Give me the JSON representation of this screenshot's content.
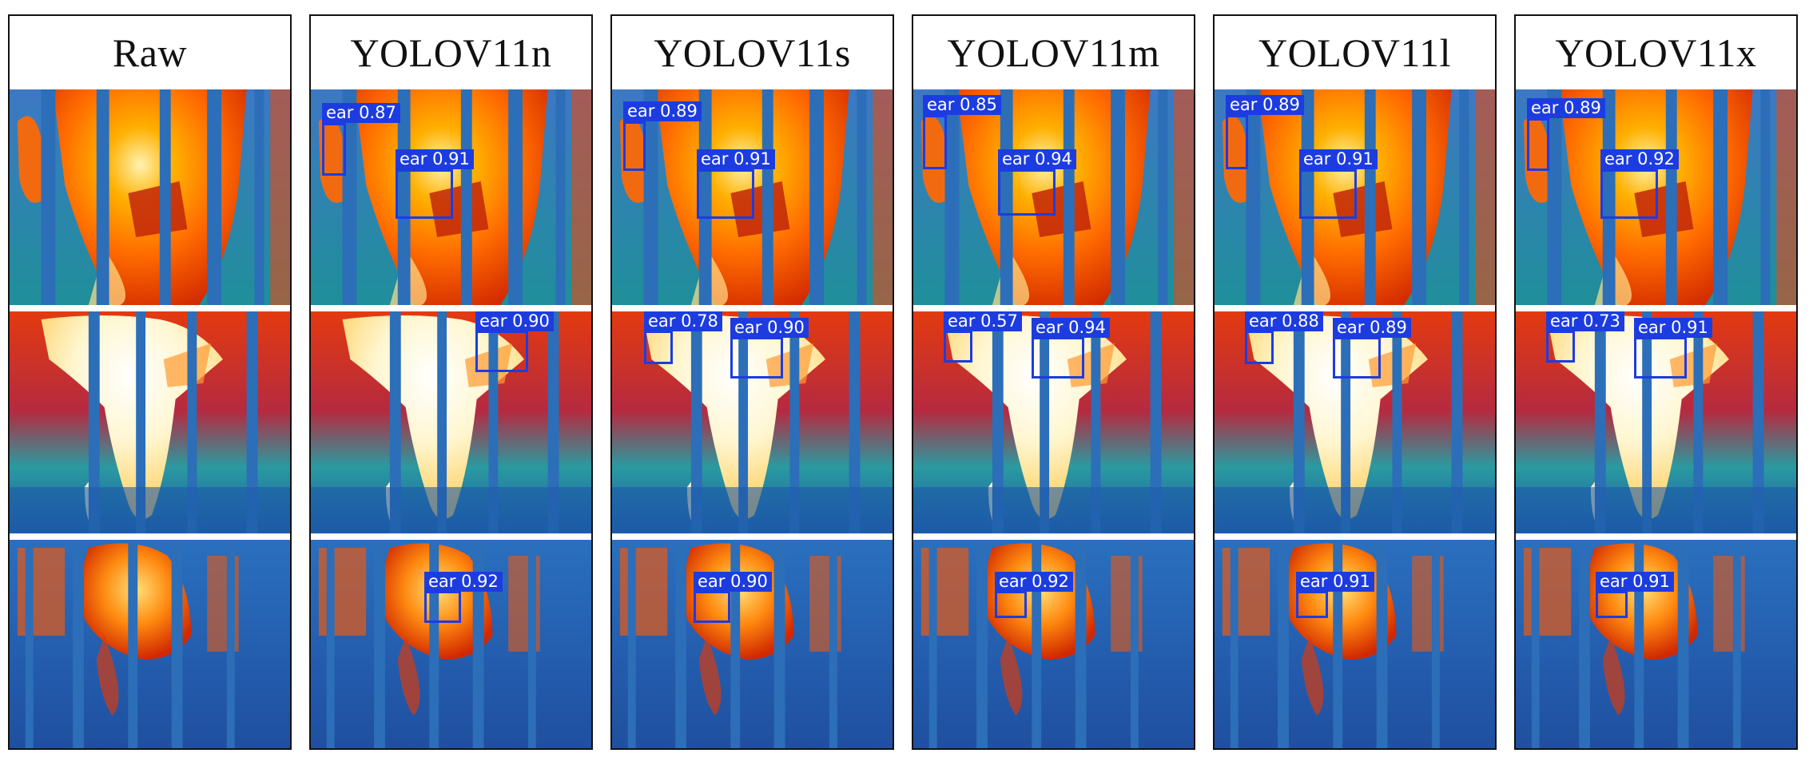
{
  "columns": [
    {
      "title": "Raw",
      "rows": [
        {
          "detections": []
        },
        {
          "detections": []
        },
        {
          "detections": []
        }
      ]
    },
    {
      "title": "YOLOV11n",
      "rows": [
        {
          "detections": [
            {
              "label": "ear 0.87"
            },
            {
              "label": "ear 0.91"
            }
          ]
        },
        {
          "detections": [
            {
              "label": "ear 0.90"
            }
          ]
        },
        {
          "detections": [
            {
              "label": "ear 0.92"
            }
          ]
        }
      ]
    },
    {
      "title": "YOLOV11s",
      "rows": [
        {
          "detections": [
            {
              "label": "ear 0.89"
            },
            {
              "label": "ear 0.91"
            }
          ]
        },
        {
          "detections": [
            {
              "label": "ear 0.78"
            },
            {
              "label": "ear 0.90"
            }
          ]
        },
        {
          "detections": [
            {
              "label": "ear 0.90"
            }
          ]
        }
      ]
    },
    {
      "title": "YOLOV11m",
      "rows": [
        {
          "detections": [
            {
              "label": "ear 0.85"
            },
            {
              "label": "ear 0.94"
            }
          ]
        },
        {
          "detections": [
            {
              "label": "ear 0.57"
            },
            {
              "label": "ear 0.94"
            }
          ]
        },
        {
          "detections": [
            {
              "label": "ear 0.92"
            }
          ]
        }
      ]
    },
    {
      "title": "YOLOV11l",
      "rows": [
        {
          "detections": [
            {
              "label": "ear 0.89"
            },
            {
              "label": "ear 0.91"
            }
          ]
        },
        {
          "detections": [
            {
              "label": "ear 0.88"
            },
            {
              "label": "ear 0.89"
            }
          ]
        },
        {
          "detections": [
            {
              "label": "ear 0.91"
            }
          ]
        }
      ]
    },
    {
      "title": "YOLOV11x",
      "rows": [
        {
          "detections": [
            {
              "label": "ear 0.89"
            },
            {
              "label": "ear 0.92"
            }
          ]
        },
        {
          "detections": [
            {
              "label": "ear 0.73"
            },
            {
              "label": "ear 0.91"
            }
          ]
        },
        {
          "detections": [
            {
              "label": "ear 0.91"
            }
          ]
        }
      ]
    }
  ]
}
